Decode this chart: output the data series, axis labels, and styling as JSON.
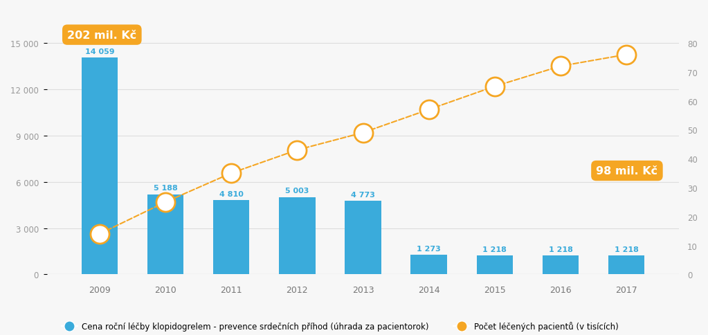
{
  "years": [
    2009,
    2010,
    2011,
    2012,
    2013,
    2014,
    2015,
    2016,
    2017
  ],
  "bar_values": [
    14059,
    5188,
    4810,
    5003,
    4773,
    1273,
    1218,
    1218,
    1218
  ],
  "bar_labels": [
    "14 059",
    "5 188",
    "4 810",
    "5 003",
    "4 773",
    "1 273",
    "1 218",
    "1 218",
    "1 218"
  ],
  "line_values": [
    14,
    25,
    35,
    43,
    49,
    57,
    65,
    72,
    76
  ],
  "bar_color": "#3aabdb",
  "line_color": "#f5a623",
  "background_color": "#f7f7f7",
  "ylim_left": [
    0,
    16500
  ],
  "ylim_right": [
    0,
    88
  ],
  "yticks_left": [
    0,
    3000,
    6000,
    9000,
    12000,
    15000
  ],
  "yticks_right": [
    0,
    10,
    20,
    30,
    40,
    50,
    60,
    70,
    80
  ],
  "annotation_box1_text": "202 mil. Kč",
  "annotation_box2_text": "98 mil. Kč",
  "legend_label_bar": "Cena roční léčby klopidogrelem - prevence srdečních příhod (úhrada za pacientorok)",
  "legend_label_line": "Počet léčených pacientů (v tisících)"
}
